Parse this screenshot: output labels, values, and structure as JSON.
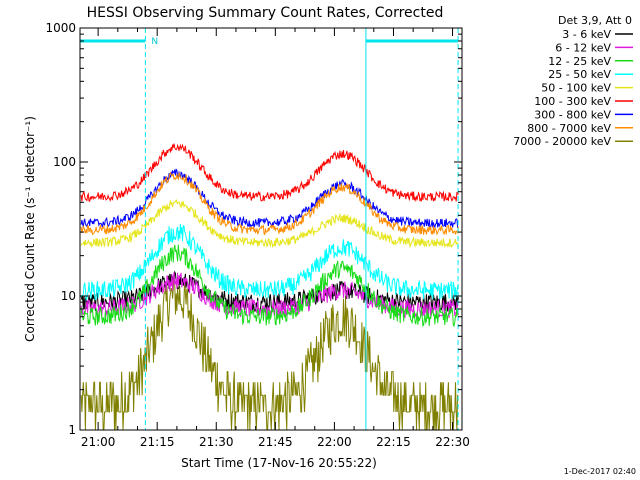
{
  "chart_data": {
    "type": "line",
    "title": "HESSI Observing Summary Count Rates, Corrected",
    "xlabel": "Start Time (17-Nov-16 20:55:22)",
    "ylabel": "Corrected Count Rate (s⁻¹ detector⁻¹)",
    "y_scale": "log",
    "ylim": [
      1,
      1000
    ],
    "xlim_minutes": [
      0,
      97
    ],
    "x_ticks": [
      {
        "label": "21:00",
        "min": 4.6
      },
      {
        "label": "21:15",
        "min": 19.6
      },
      {
        "label": "21:30",
        "min": 34.6
      },
      {
        "label": "21:45",
        "min": 49.6
      },
      {
        "label": "22:00",
        "min": 64.6
      },
      {
        "label": "22:15",
        "min": 79.6
      },
      {
        "label": "22:30",
        "min": 94.6
      }
    ],
    "y_ticks": [
      {
        "label": "1",
        "value": 1
      },
      {
        "label": "10",
        "value": 10
      },
      {
        "label": "100",
        "value": 100
      },
      {
        "label": "1000",
        "value": 1000
      }
    ],
    "legend_header": "Det 3,9, Att 0",
    "legend_placement": "top-right, outside plot",
    "grid": false,
    "series": [
      {
        "name": "3 - 6 keV",
        "color": "#000000",
        "base": 9,
        "peak1": 13,
        "peak2": 11
      },
      {
        "name": "6 - 12 keV",
        "color": "#e01be0",
        "base": 8,
        "peak1": 13,
        "peak2": 11
      },
      {
        "name": "12 - 25 keV",
        "color": "#18dc18",
        "base": 7,
        "peak1": 21,
        "peak2": 16
      },
      {
        "name": "25 - 50 keV",
        "color": "#00ffff",
        "base": 11,
        "peak1": 30,
        "peak2": 23
      },
      {
        "name": "50 - 100 keV",
        "color": "#e5e51a",
        "base": 25,
        "peak1": 49,
        "peak2": 38
      },
      {
        "name": "100 - 300 keV",
        "color": "#ff0000",
        "base": 55,
        "peak1": 130,
        "peak2": 115
      },
      {
        "name": "300 - 800 keV",
        "color": "#0000ff",
        "base": 35,
        "peak1": 82,
        "peak2": 68
      },
      {
        "name": "800 - 7000 keV",
        "color": "#ff8c00",
        "base": 31,
        "peak1": 80,
        "peak2": 65
      },
      {
        "name": "7000 - 20000 keV",
        "color": "#808000",
        "base": 1.5,
        "peak1": 10,
        "peak2": 7
      }
    ],
    "peaks_minutes": [
      24.6,
      66.6
    ],
    "annotations": {
      "segment_marker": "N",
      "observing_segments_minutes": [
        [
          0,
          16.6
        ],
        [
          72.6,
          96
        ]
      ],
      "boundary_lines_minutes": [
        16.6,
        72.6,
        96
      ]
    },
    "footer_date": "1-Dec-2017 02:40"
  }
}
